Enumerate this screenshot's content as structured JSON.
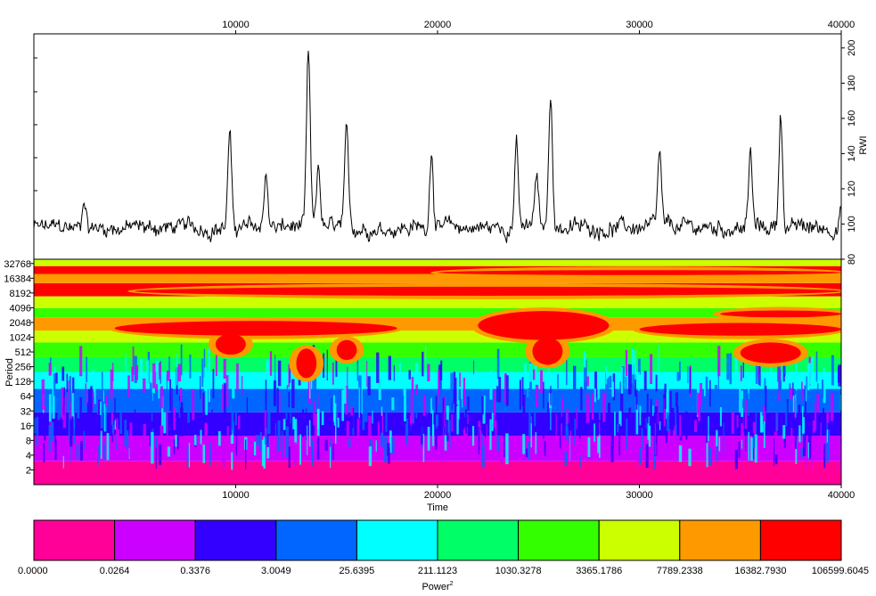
{
  "chart_data": [
    {
      "type": "line",
      "name": "ring-width-series",
      "ylabel": "RWI",
      "xlim": [
        0,
        40000
      ],
      "ylim": [
        80,
        208
      ],
      "top_x_ticks": [
        "10000",
        "20000",
        "30000",
        "40000"
      ],
      "top_x_tick_values": [
        10000,
        20000,
        30000,
        40000
      ],
      "y_ticks": [
        "80",
        "100",
        "120",
        "140",
        "160",
        "180",
        "200"
      ],
      "y_tick_values": [
        80,
        100,
        120,
        140,
        160,
        180,
        200
      ],
      "baseline": 98,
      "noise_amplitude": 6,
      "peaks": [
        {
          "x": 2500,
          "y": 117
        },
        {
          "x": 9700,
          "y": 155
        },
        {
          "x": 11500,
          "y": 133
        },
        {
          "x": 13600,
          "y": 204
        },
        {
          "x": 14100,
          "y": 136
        },
        {
          "x": 15500,
          "y": 158
        },
        {
          "x": 19700,
          "y": 146
        },
        {
          "x": 23900,
          "y": 151
        },
        {
          "x": 24900,
          "y": 130
        },
        {
          "x": 25600,
          "y": 182
        },
        {
          "x": 31000,
          "y": 142
        },
        {
          "x": 35500,
          "y": 144
        },
        {
          "x": 37000,
          "y": 168
        },
        {
          "x": 40000,
          "y": 110
        }
      ]
    },
    {
      "type": "heatmap",
      "name": "wavelet-power-spectrum",
      "xlabel": "Time",
      "ylabel": "Period",
      "xlim": [
        0,
        40000
      ],
      "x_ticks": [
        "10000",
        "20000",
        "30000",
        "40000"
      ],
      "x_tick_values": [
        10000,
        20000,
        30000,
        40000
      ],
      "y_ticks": [
        "2",
        "4",
        "8",
        "16",
        "32",
        "64",
        "128",
        "256",
        "512",
        "1024",
        "2048",
        "4096",
        "8192",
        "16384",
        "32768"
      ],
      "y_tick_values": [
        2,
        4,
        8,
        16,
        32,
        64,
        128,
        256,
        512,
        1024,
        2048,
        4096,
        8192,
        16384,
        32768
      ],
      "power_bands": [
        {
          "period_from": 1,
          "period_to": 3,
          "level": 0
        },
        {
          "period_from": 3,
          "period_to": 10,
          "level": 1
        },
        {
          "period_from": 10,
          "period_to": 30,
          "level": 2
        },
        {
          "period_from": 30,
          "period_to": 90,
          "level": 3
        },
        {
          "period_from": 90,
          "period_to": 200,
          "level": 4
        },
        {
          "period_from": 200,
          "period_to": 400,
          "level": 5
        },
        {
          "period_from": 400,
          "period_to": 800,
          "level": 6
        },
        {
          "period_from": 800,
          "period_to": 1400,
          "level": 7
        },
        {
          "period_from": 1400,
          "period_to": 2600,
          "level": 8
        },
        {
          "period_from": 2600,
          "period_to": 4000,
          "level": 6
        },
        {
          "period_from": 4000,
          "period_to": 7000,
          "level": 7
        },
        {
          "period_from": 7000,
          "period_to": 13000,
          "level": 9
        },
        {
          "period_from": 13000,
          "period_to": 20000,
          "level": 8
        },
        {
          "period_from": 20000,
          "period_to": 29000,
          "level": 9
        },
        {
          "period_from": 29000,
          "period_to": 40000,
          "level": 7
        }
      ],
      "high_power_regions": [
        {
          "x_from": 4000,
          "x_to": 18000,
          "period_from": 1100,
          "period_to": 2200
        },
        {
          "x_from": 9000,
          "x_to": 10500,
          "period_from": 450,
          "period_to": 1200
        },
        {
          "x_from": 13000,
          "x_to": 14000,
          "period_from": 150,
          "period_to": 600
        },
        {
          "x_from": 15000,
          "x_to": 16000,
          "period_from": 350,
          "period_to": 900
        },
        {
          "x_from": 22000,
          "x_to": 28500,
          "period_from": 900,
          "period_to": 3500
        },
        {
          "x_from": 24700,
          "x_to": 26200,
          "period_from": 280,
          "period_to": 1000
        },
        {
          "x_from": 30000,
          "x_to": 40000,
          "period_from": 1100,
          "period_to": 2000
        },
        {
          "x_from": 35000,
          "x_to": 38000,
          "period_from": 300,
          "period_to": 800
        },
        {
          "x_from": 5000,
          "x_to": 40000,
          "period_from": 7200,
          "period_to": 11000
        },
        {
          "x_from": 20000,
          "x_to": 40000,
          "period_from": 19000,
          "period_to": 24000
        },
        {
          "x_from": 34000,
          "x_to": 40000,
          "period_from": 2600,
          "period_to": 3600
        }
      ]
    },
    {
      "type": "legend-scale",
      "name": "power-colorbar",
      "label": "Power",
      "label_superscript": "2",
      "levels": [
        "0.0000",
        "0.0264",
        "0.3376",
        "3.0049",
        "25.6395",
        "211.1123",
        "1030.3278",
        "3365.1786",
        "7789.2338",
        "16382.7930",
        "106599.6045"
      ],
      "colors": [
        "#ff0099",
        "#cc00ff",
        "#3300ff",
        "#0066ff",
        "#00ffff",
        "#00ff66",
        "#33ff00",
        "#ccff00",
        "#ff9900",
        "#ff0000"
      ]
    }
  ]
}
